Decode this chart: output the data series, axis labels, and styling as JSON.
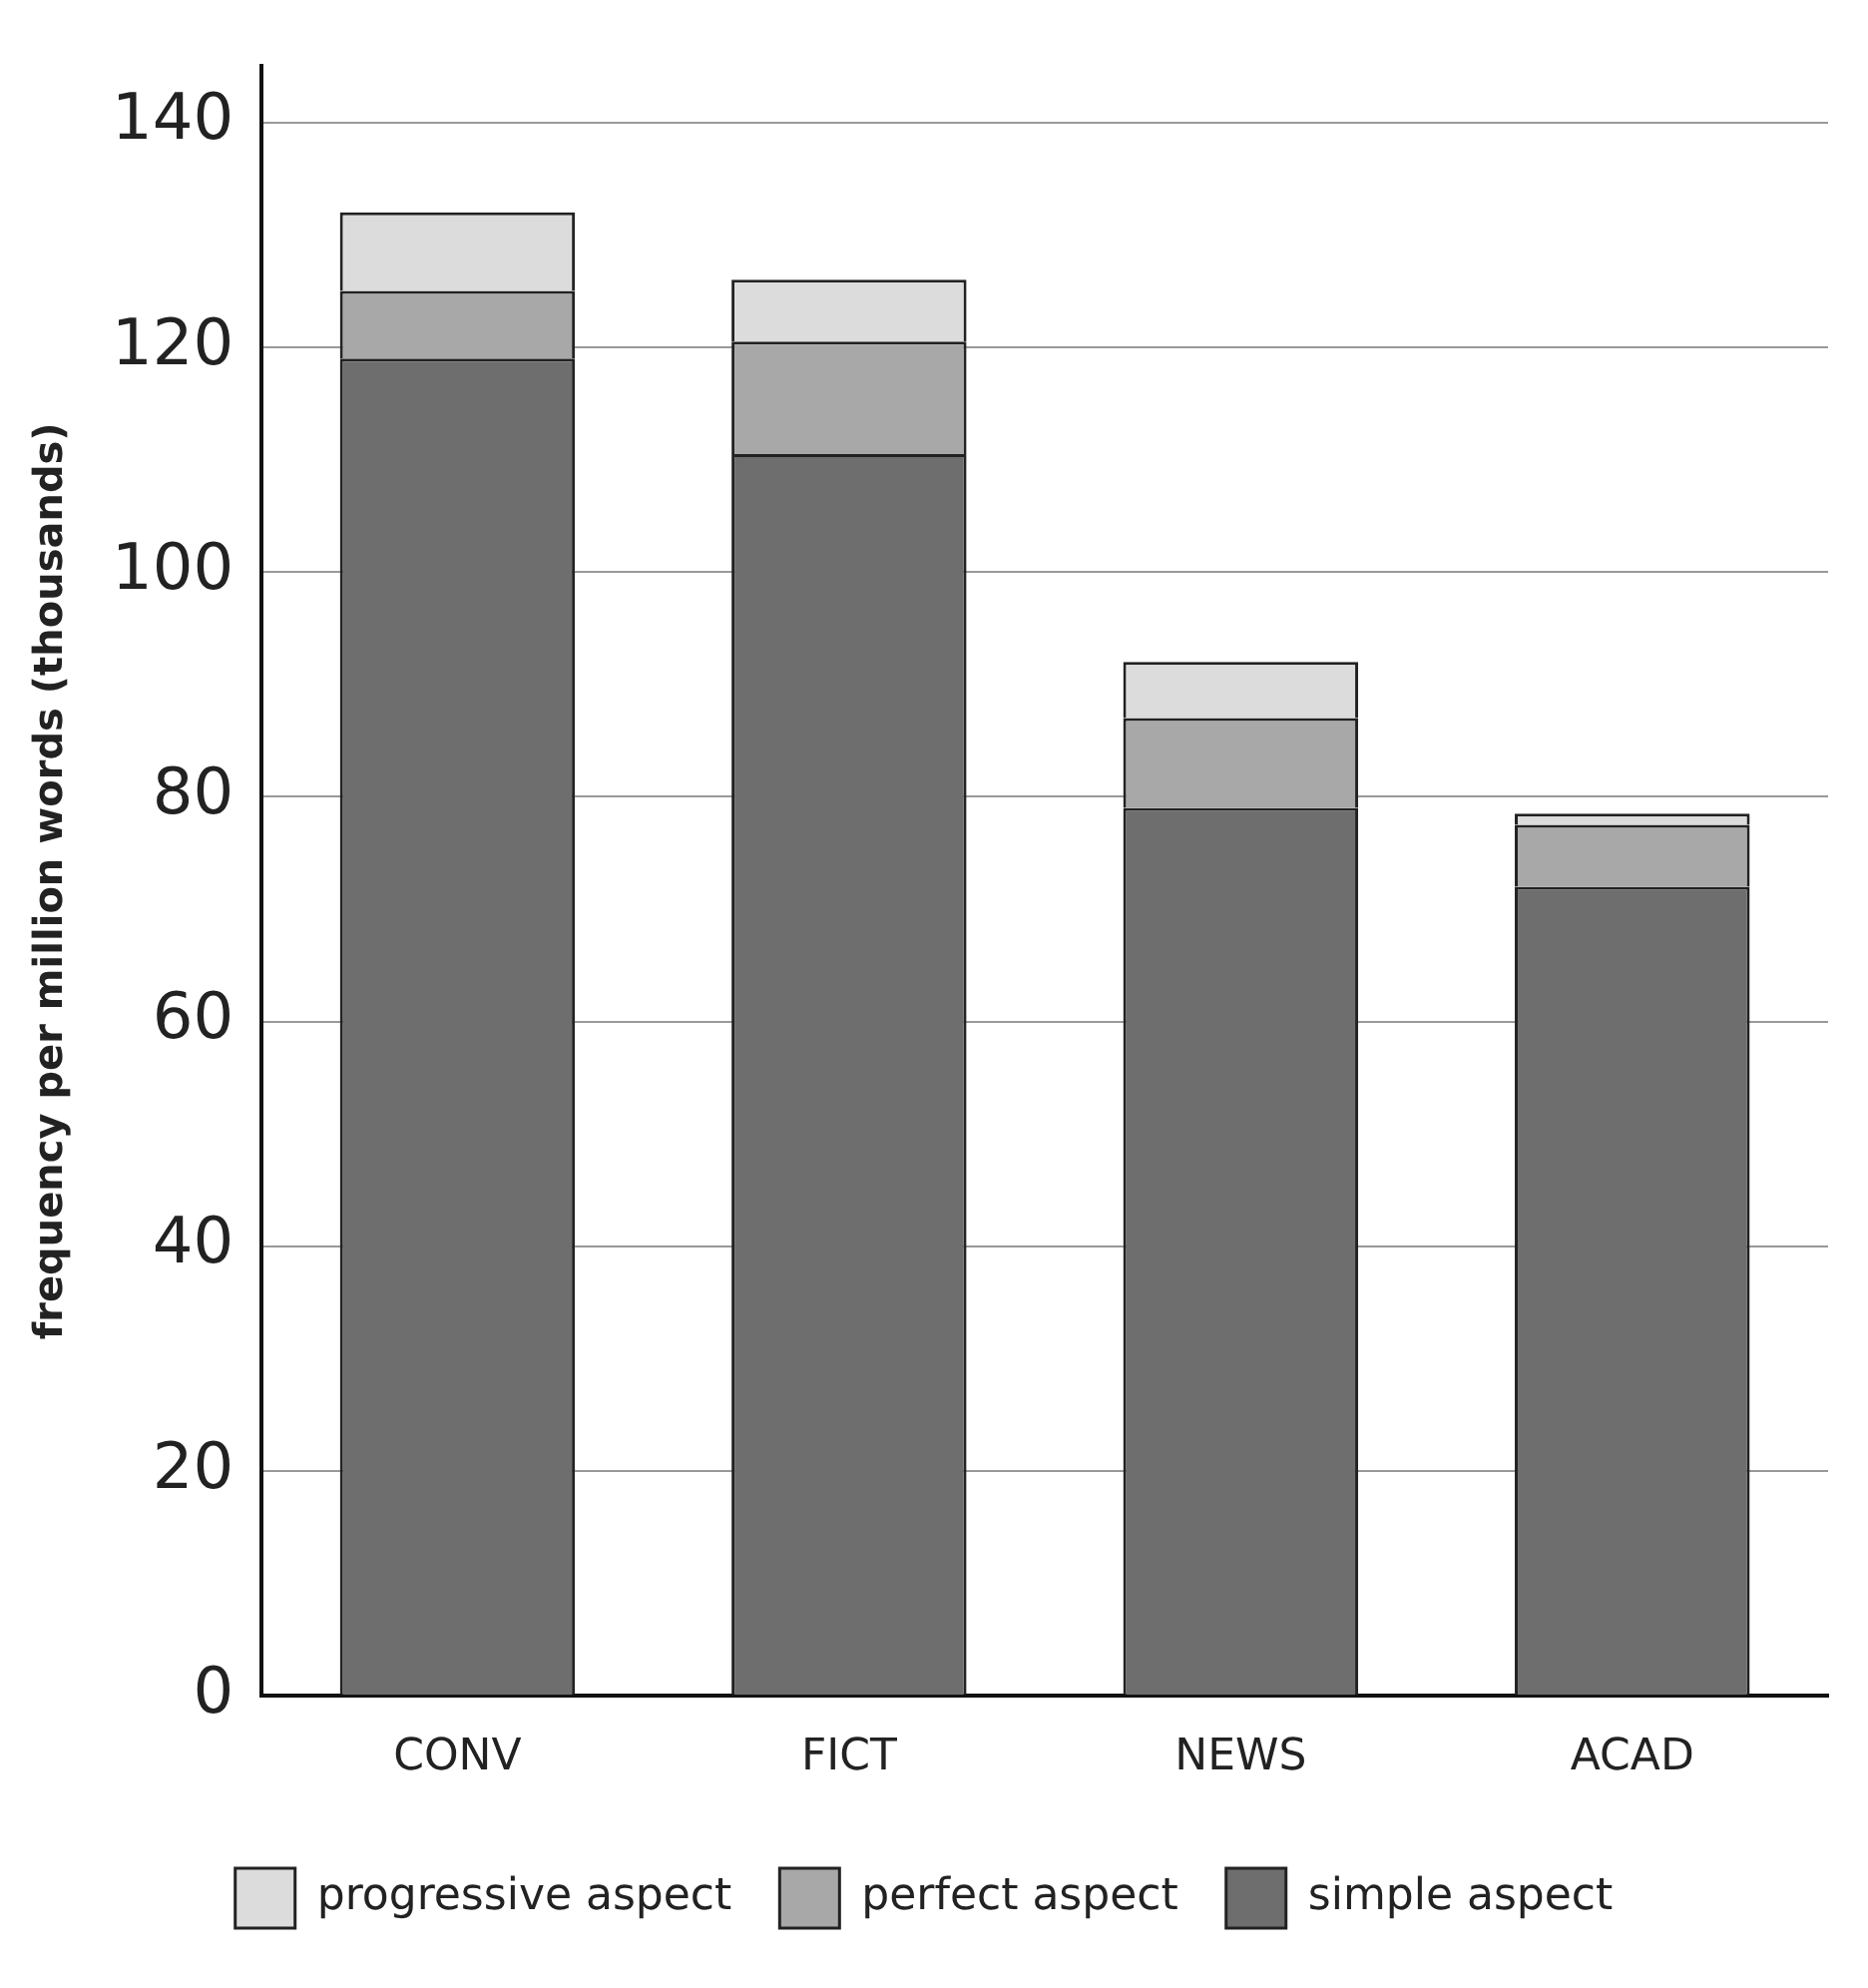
{
  "chart_data": {
    "type": "bar",
    "stacked": true,
    "ylabel": "frequency per million words (thousands)",
    "categories": [
      "CONV",
      "FICT",
      "NEWS",
      "ACAD"
    ],
    "series": [
      {
        "name": "simple aspect",
        "color": "#6e6e6e",
        "values": [
          119,
          110.5,
          79,
          72
        ]
      },
      {
        "name": "perfect aspect",
        "color": "#a8a8a8",
        "values": [
          6,
          10,
          8,
          5.5
        ]
      },
      {
        "name": "progressive aspect",
        "color": "#dcdcdc",
        "values": [
          7,
          5.5,
          5,
          1
        ]
      }
    ],
    "ylim": [
      0,
      145
    ],
    "yticks": [
      0,
      20,
      40,
      60,
      80,
      100,
      120,
      140
    ],
    "grid": "y",
    "legend": "bottom"
  }
}
